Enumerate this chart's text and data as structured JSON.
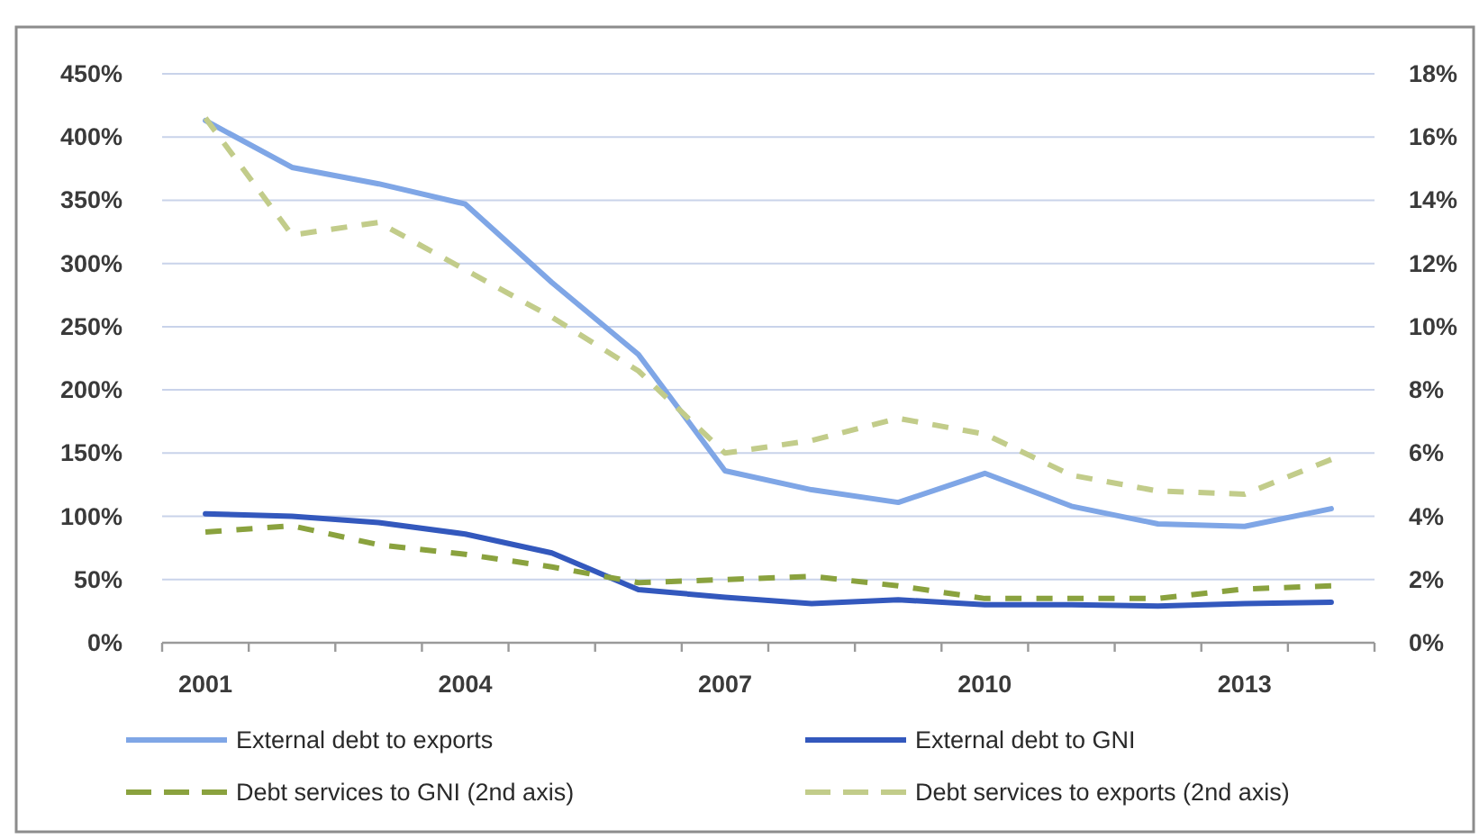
{
  "chart_data": {
    "type": "line",
    "categories": [
      "2001",
      null,
      null,
      "2004",
      null,
      null,
      "2007",
      null,
      null,
      "2010",
      null,
      null,
      "2013",
      null
    ],
    "series": [
      {
        "name": "External debt to exports",
        "color": "#7fa6e6",
        "values": [
          413,
          376,
          363,
          347,
          285,
          228,
          136,
          121,
          111,
          134,
          108,
          94,
          92,
          106
        ]
      },
      {
        "name": "External debt to GNI",
        "color": "#3358bd",
        "values": [
          102,
          100,
          95,
          86,
          71,
          42,
          36,
          31,
          34,
          30,
          30,
          29,
          31,
          32
        ]
      },
      {
        "name": "Debt services to GNI (2nd axis)",
        "color": "#8aa23e",
        "axis": "y2",
        "line_style": "dashed",
        "values": [
          3.5,
          3.7,
          3.1,
          2.8,
          2.4,
          1.9,
          2.0,
          2.1,
          1.8,
          1.4,
          1.4,
          1.4,
          1.7,
          1.8
        ]
      },
      {
        "name": "Debt services to exports (2nd axis)",
        "color": "#c2cc8a",
        "axis": "y2",
        "line_style": "dashed",
        "values": [
          16.6,
          12.9,
          13.3,
          11.8,
          10.3,
          8.6,
          6.0,
          6.4,
          7.1,
          6.6,
          5.3,
          4.8,
          4.7,
          5.8
        ]
      }
    ],
    "ylim": [
      0,
      450
    ],
    "yticks": [
      {
        "value": 0,
        "label": "0%"
      },
      {
        "value": 50,
        "label": "50%"
      },
      {
        "value": 100,
        "label": "100%"
      },
      {
        "value": 150,
        "label": "150%"
      },
      {
        "value": 200,
        "label": "200%"
      },
      {
        "value": 250,
        "label": "250%"
      },
      {
        "value": 300,
        "label": "300%"
      },
      {
        "value": 350,
        "label": "350%"
      },
      {
        "value": 400,
        "label": "400%"
      },
      {
        "value": 450,
        "label": "450%"
      }
    ],
    "y2lim": [
      0,
      18
    ],
    "y2ticks": [
      {
        "value": 0,
        "label": "0%"
      },
      {
        "value": 2,
        "label": "2%"
      },
      {
        "value": 4,
        "label": "4%"
      },
      {
        "value": 6,
        "label": "6%"
      },
      {
        "value": 8,
        "label": "8%"
      },
      {
        "value": 10,
        "label": "10%"
      },
      {
        "value": 12,
        "label": "12%"
      },
      {
        "value": 14,
        "label": "14%"
      },
      {
        "value": 16,
        "label": "16%"
      },
      {
        "value": 18,
        "label": "18%"
      }
    ],
    "grid": "y",
    "legend": "bottom"
  }
}
